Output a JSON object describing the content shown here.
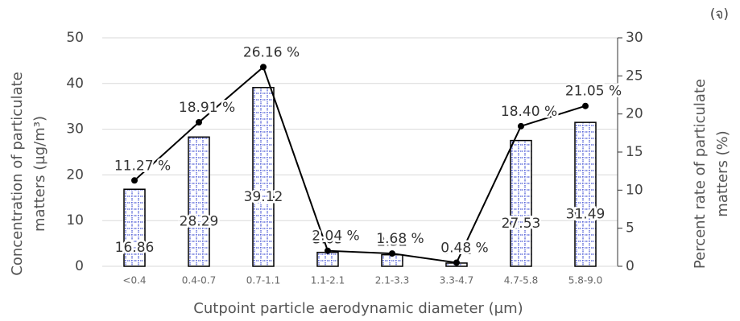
{
  "chart_data": {
    "type": "bar",
    "annotation": "(จ)",
    "x_label": "Cutpoint particle aerodynamic diameter (µm)",
    "y_label": [
      "Concentration of particulate",
      "matters (µg/m³)"
    ],
    "y2_label": [
      "Percent rate of particulate",
      "matters (%)"
    ],
    "categories": [
      "<0.4",
      "0.4-0.7",
      "0.7-1.1",
      "1.1-2.1",
      "2.1-3.3",
      "3.3-4.7",
      "4.7-5.8",
      "5.8-9.0"
    ],
    "series": [
      {
        "type": "bar",
        "color": "#000000",
        "values": [
          16.86,
          28.29,
          39.12,
          3.05,
          2.52,
          0.71,
          27.53,
          31.49
        ]
      },
      {
        "type": "line",
        "axis": "y2",
        "color": "#000000",
        "values": [
          11.27,
          18.91,
          26.16,
          2.04,
          1.68,
          0.48,
          18.4,
          21.05
        ],
        "value_labels": [
          "11.27 %",
          "18.91 %",
          "26.16 %",
          "2.04 %",
          "1.68 %",
          "0.48 %",
          "18.40 %",
          "21.05 %"
        ]
      }
    ],
    "ylim": [
      0,
      50
    ],
    "yticks": [
      0,
      10,
      20,
      30,
      40,
      50
    ],
    "y2lim": [
      0,
      30
    ],
    "y2ticks": [
      0,
      5,
      10,
      15,
      20,
      25,
      30
    ],
    "grid": true
  }
}
